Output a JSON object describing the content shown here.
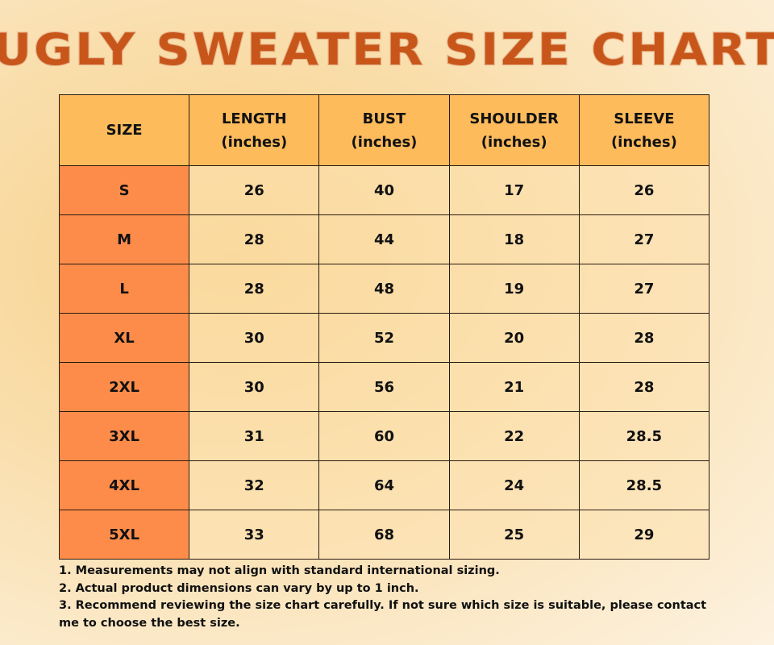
{
  "title": "UGLY SWEATER SIZE CHART",
  "colors": {
    "title": "#c8561a",
    "header_bg": "#fdbb5c",
    "size_col_bg": "#fd8c4a"
  },
  "table": {
    "headers": [
      {
        "line1": "SIZE",
        "line2": ""
      },
      {
        "line1": "LENGTH",
        "line2": "(inches)"
      },
      {
        "line1": "BUST",
        "line2": "(inches)"
      },
      {
        "line1": "SHOULDER",
        "line2": "(inches)"
      },
      {
        "line1": "SLEEVE",
        "line2": "(inches)"
      }
    ],
    "rows": [
      [
        "S",
        "26",
        "40",
        "17",
        "26"
      ],
      [
        "M",
        "28",
        "44",
        "18",
        "27"
      ],
      [
        "L",
        "28",
        "48",
        "19",
        "27"
      ],
      [
        "XL",
        "30",
        "52",
        "20",
        "28"
      ],
      [
        "2XL",
        "30",
        "56",
        "21",
        "28"
      ],
      [
        "3XL",
        "31",
        "60",
        "22",
        "28.5"
      ],
      [
        "4XL",
        "32",
        "64",
        "24",
        "28.5"
      ],
      [
        "5XL",
        "33",
        "68",
        "25",
        "29"
      ]
    ]
  },
  "notes": [
    "1. Measurements may not align with standard international sizing.",
    "2. Actual product dimensions can vary by up to 1 inch.",
    "3. Recommend reviewing the size chart carefully. If not sure which size is suitable, please contact me to choose the best size."
  ]
}
